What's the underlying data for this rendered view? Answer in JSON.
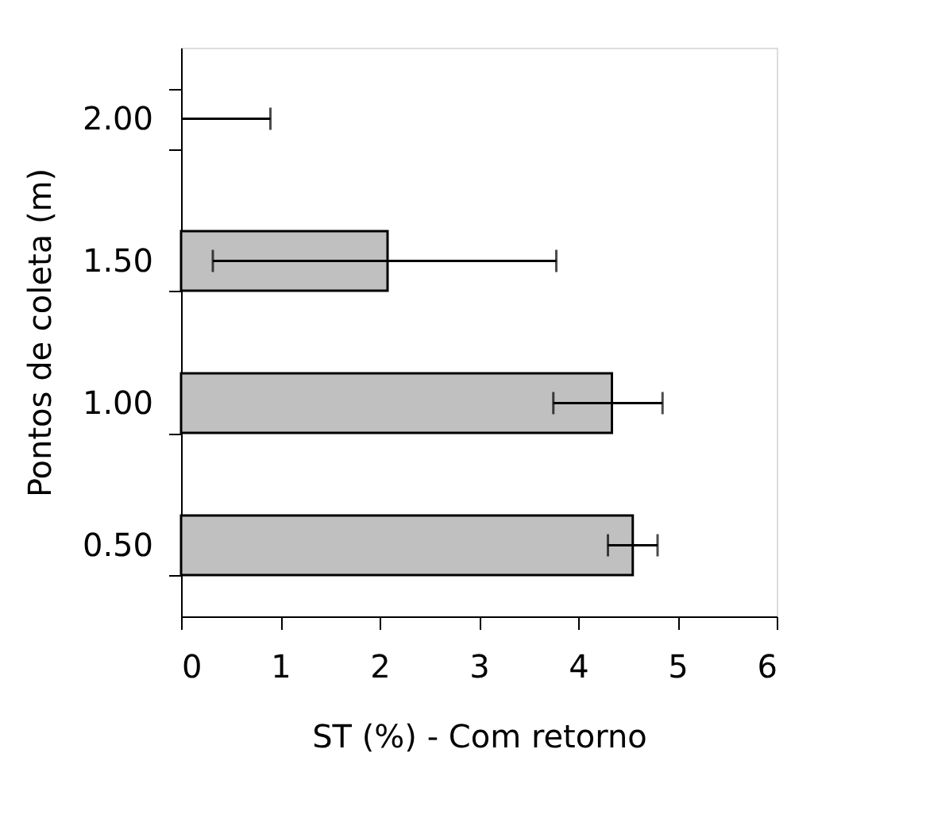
{
  "chart_data": {
    "type": "bar",
    "orientation": "horizontal",
    "xlabel": "ST (%) - Com retorno",
    "ylabel": "Pontos de coleta (m)",
    "categories": [
      "2.00",
      "1.50",
      "1.00",
      "0.50"
    ],
    "values": [
      0,
      2.08,
      4.34,
      4.55
    ],
    "errors": [
      [
        0,
        0.9
      ],
      [
        0.32,
        3.78
      ],
      [
        3.75,
        4.85
      ],
      [
        4.3,
        4.8
      ]
    ],
    "color": "#c0c0c0",
    "xlim": [
      0,
      6
    ],
    "xticks": [
      0,
      1,
      2,
      3,
      4,
      5,
      6
    ],
    "grid": false
  }
}
